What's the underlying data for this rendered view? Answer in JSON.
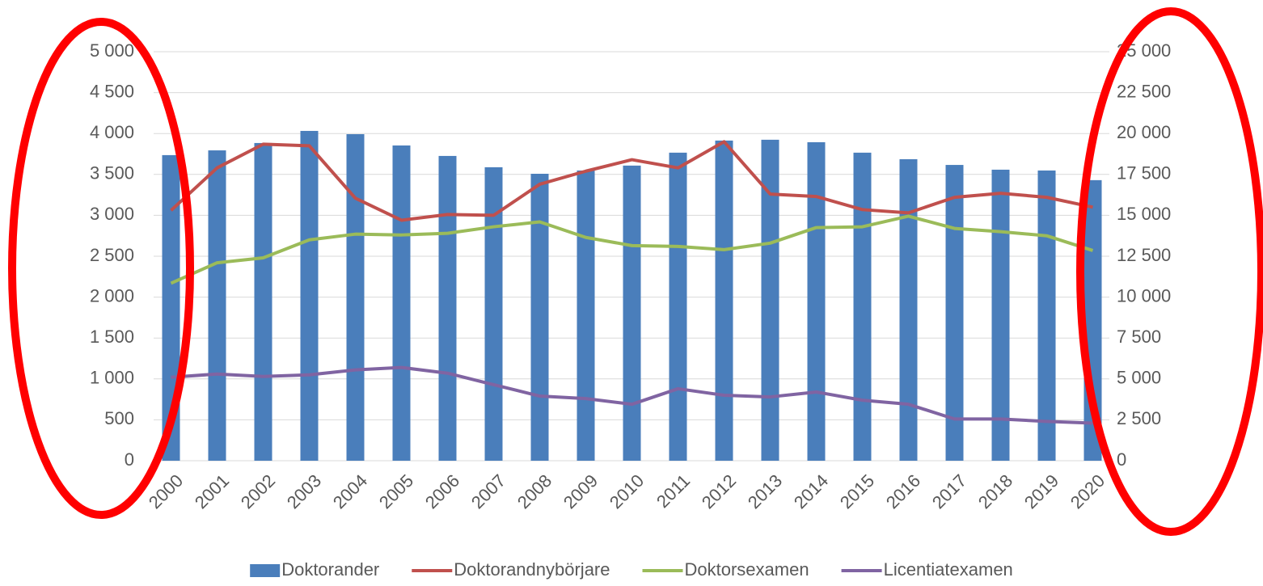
{
  "chart_data": {
    "type": "combo",
    "categories": [
      "2000",
      "2001",
      "2002",
      "2003",
      "2004",
      "2005",
      "2006",
      "2007",
      "2008",
      "2009",
      "2010",
      "2011",
      "2012",
      "2013",
      "2014",
      "2015",
      "2016",
      "2017",
      "2018",
      "2019",
      "2020"
    ],
    "ylim": [
      0,
      5000
    ],
    "yticks": [
      0,
      500,
      {
        "value": 1000,
        "label": "1 000"
      },
      {
        "value": 1500,
        "label": "1 500"
      },
      {
        "value": 2000,
        "label": "2 000"
      },
      {
        "value": 2500,
        "label": "2 500"
      },
      {
        "value": 3000,
        "label": "3 000"
      },
      {
        "value": 3500,
        "label": "3 500"
      },
      {
        "value": 4000,
        "label": "4 000"
      },
      {
        "value": 4500,
        "label": "4 500"
      },
      {
        "value": 5000,
        "label": "5 000"
      }
    ],
    "y2lim": [
      0,
      25000
    ],
    "y2ticks": [
      0,
      {
        "value": 2500,
        "label": "2 500"
      },
      {
        "value": 5000,
        "label": "5 000"
      },
      {
        "value": 7500,
        "label": "7 500"
      },
      {
        "value": 10000,
        "label": "10 000"
      },
      {
        "value": 12500,
        "label": "12 500"
      },
      {
        "value": 15000,
        "label": "15 000"
      },
      {
        "value": 17500,
        "label": "17 500"
      },
      {
        "value": 20000,
        "label": "20 000"
      },
      {
        "value": 22500,
        "label": "22 500"
      },
      {
        "value": 25000,
        "label": "25 000"
      }
    ],
    "grid": true,
    "legend": "bottom",
    "series": [
      {
        "name": "Doktorander",
        "type": "bar",
        "axis": "y2",
        "color": "#4a7ebb",
        "values": [
          18680,
          18970,
          19420,
          20160,
          19960,
          19270,
          18630,
          17940,
          17540,
          17740,
          18040,
          18830,
          19570,
          19620,
          19470,
          18830,
          18430,
          18080,
          17790,
          17740,
          17150
        ]
      },
      {
        "name": "Doktorandnybörjare",
        "type": "line",
        "color": "#c0504d",
        "values": [
          3060,
          3580,
          3870,
          3850,
          3210,
          2940,
          3010,
          3000,
          3380,
          3540,
          3680,
          3580,
          3900,
          3260,
          3230,
          3070,
          3030,
          3220,
          3270,
          3220,
          3100
        ]
      },
      {
        "name": "Doktorsexamen",
        "type": "line",
        "color": "#9bbb59",
        "values": [
          2170,
          2420,
          2480,
          2700,
          2770,
          2760,
          2780,
          2860,
          2920,
          2730,
          2630,
          2620,
          2580,
          2660,
          2850,
          2860,
          2990,
          2840,
          2800,
          2750,
          2570
        ]
      },
      {
        "name": "Licentiatexamen",
        "type": "line",
        "color": "#8064a2",
        "values": [
          1020,
          1060,
          1030,
          1050,
          1110,
          1140,
          1070,
          930,
          790,
          760,
          690,
          880,
          800,
          780,
          840,
          740,
          690,
          510,
          510,
          480,
          460
        ]
      }
    ]
  }
}
